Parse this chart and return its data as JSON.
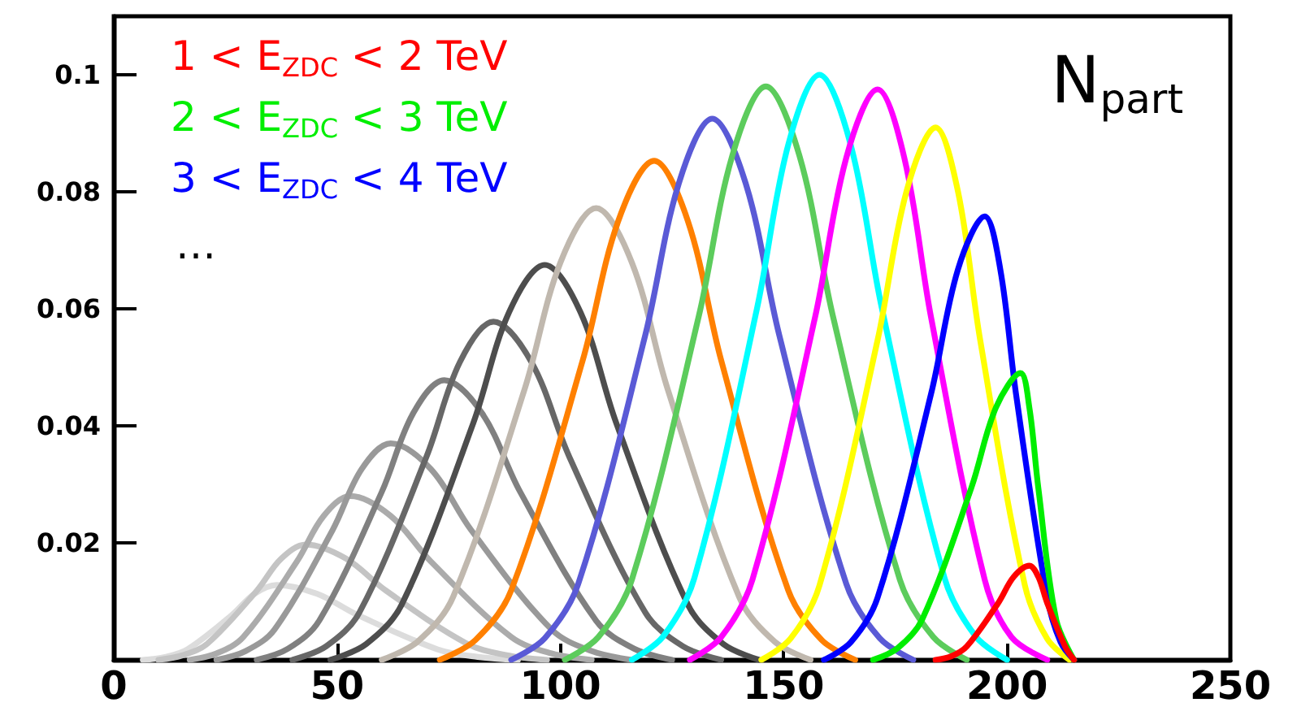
{
  "chart_data": {
    "type": "line",
    "xlim": [
      0,
      250
    ],
    "xticks": [
      0,
      50,
      100,
      150,
      200,
      250
    ],
    "ylim": [
      0,
      0.11
    ],
    "yticks": [
      {
        "value": 0,
        "label": null
      },
      0.02,
      0.04,
      0.06,
      0.08,
      0.1
    ],
    "grid": false,
    "legend": "top left",
    "marker": "none",
    "annotations": [
      "…",
      "N$_{part}$"
    ],
    "series": [
      {
        "name": "1 < E$_{ZDC}$ < 2 TeV",
        "color": "#ff0000",
        "x": [
          184,
          187.5,
          191,
          198,
          201.5,
          205,
          207,
          209,
          213,
          215
        ],
        "values": [
          0,
          0.0006,
          0.0023,
          0.0097,
          0.0142,
          0.0161,
          0.0142,
          0.0097,
          0.0023,
          0
        ]
      },
      {
        "name": "2 < E$_{ZDC}$ < 3 TeV",
        "color": "#00ee00",
        "x": [
          170,
          175.5,
          181,
          192,
          197.5,
          203,
          205,
          207,
          211,
          215
        ],
        "values": [
          0,
          0.002,
          0.0069,
          0.0294,
          0.0431,
          0.049,
          0.0431,
          0.0294,
          0.0069,
          0
        ]
      },
      {
        "name": "3 < E$_{ZDC}$ < 4 TeV",
        "color": "#0000ff",
        "x": [
          159,
          165,
          171,
          183,
          189,
          195,
          198.5,
          202,
          209,
          212,
          215
        ],
        "values": [
          0,
          0.003,
          0.0106,
          0.0455,
          0.0667,
          0.0758,
          0.0667,
          0.0455,
          0.0106,
          0.003,
          0
        ]
      },
      {
        "color": "#ffff00",
        "x": [
          145,
          151.5,
          158,
          171,
          177.5,
          184,
          189,
          194,
          204,
          209,
          214
        ],
        "values": [
          0,
          0.0036,
          0.0127,
          0.0546,
          0.0801,
          0.091,
          0.0801,
          0.0546,
          0.0127,
          0.0036,
          0
        ]
      },
      {
        "color": "#ff00ff",
        "x": [
          129,
          136,
          143,
          157,
          164,
          171,
          177,
          183,
          195,
          201,
          209
        ],
        "values": [
          0,
          0.0039,
          0.0137,
          0.0585,
          0.0858,
          0.0975,
          0.0858,
          0.0585,
          0.0137,
          0.0039,
          0
        ]
      },
      {
        "color": "#00ffff",
        "x": [
          116,
          123,
          130,
          144,
          151,
          158,
          165,
          172,
          186,
          193,
          200
        ],
        "values": [
          0,
          0.004,
          0.014,
          0.06,
          0.088,
          0.1,
          0.088,
          0.06,
          0.014,
          0.004,
          0
        ]
      },
      {
        "color": "#5ccc5c",
        "x": [
          101,
          108.5,
          116,
          131,
          138.5,
          146,
          153.5,
          161,
          176,
          183.5,
          191
        ],
        "values": [
          0,
          0.0039,
          0.0137,
          0.0588,
          0.0862,
          0.098,
          0.0862,
          0.0588,
          0.0137,
          0.0039,
          0
        ]
      },
      {
        "color": "#5a5ad6",
        "x": [
          89,
          96.5,
          104,
          119,
          126.5,
          134,
          141.5,
          149,
          164,
          171.5,
          179
        ],
        "values": [
          0,
          0.0037,
          0.013,
          0.0555,
          0.0814,
          0.0925,
          0.0814,
          0.0555,
          0.013,
          0.0037,
          0
        ]
      },
      {
        "color": "#ff8000",
        "x": [
          73,
          81,
          89,
          105,
          113,
          121,
          128.5,
          136,
          151,
          158.5,
          166
        ],
        "values": [
          0,
          0.0034,
          0.0119,
          0.0512,
          0.0751,
          0.0853,
          0.0751,
          0.0512,
          0.0119,
          0.0034,
          0
        ]
      },
      {
        "color": "#c0b8ae",
        "x": [
          60,
          68,
          76,
          92,
          100,
          108,
          116,
          124,
          140,
          148,
          156
        ],
        "values": [
          0,
          0.0031,
          0.0108,
          0.0463,
          0.0679,
          0.0772,
          0.0679,
          0.0463,
          0.0108,
          0.0031,
          0
        ]
      },
      {
        "color": "#4d4d4d",
        "x": [
          48.5,
          56.5,
          64.5,
          80.5,
          88.5,
          96.5,
          104.5,
          112.5,
          128.5,
          136.5,
          144.5
        ],
        "values": [
          0,
          0.0027,
          0.0095,
          0.0405,
          0.0594,
          0.0675,
          0.0594,
          0.0405,
          0.0095,
          0.0027,
          0
        ]
      },
      {
        "color": "#676767",
        "x": [
          40,
          47.5,
          55,
          70,
          77.5,
          85,
          93.5,
          102,
          119,
          127.5,
          136
        ],
        "values": [
          0,
          0.0023,
          0.0081,
          0.0347,
          0.0509,
          0.0578,
          0.0509,
          0.0347,
          0.0081,
          0.0023,
          0
        ]
      },
      {
        "color": "#808080",
        "x": [
          32,
          39,
          46,
          60,
          67,
          74,
          82.5,
          91,
          108,
          116.5,
          125
        ],
        "values": [
          0,
          0.0019,
          0.0067,
          0.0287,
          0.0421,
          0.0478,
          0.0421,
          0.0287,
          0.0067,
          0.0019,
          0
        ]
      },
      {
        "color": "#999999",
        "x": [
          23,
          29.5,
          36,
          49,
          55.5,
          62,
          71,
          80,
          98,
          107,
          116
        ],
        "values": [
          0,
          0.0015,
          0.0052,
          0.0222,
          0.0326,
          0.037,
          0.0326,
          0.0222,
          0.0052,
          0.0015,
          0
        ]
      },
      {
        "color": "#ababab",
        "x": [
          17,
          23,
          29,
          41,
          47,
          53,
          62,
          71,
          89,
          98,
          107
        ],
        "values": [
          0,
          0.0011,
          0.0039,
          0.0168,
          0.0246,
          0.028,
          0.0246,
          0.0168,
          0.0039,
          0.0011,
          0
        ]
      },
      {
        "color": "#c4c4c4",
        "x": [
          10,
          15.5,
          21,
          32,
          37.5,
          43,
          52,
          61,
          79,
          88,
          97
        ],
        "values": [
          0,
          0.0008,
          0.0028,
          0.0118,
          0.0173,
          0.0197,
          0.0173,
          0.0118,
          0.0028,
          0.0008,
          0
        ]
      },
      {
        "color": "#dcdcdc",
        "x": [
          6.5,
          11.5,
          16.5,
          26.5,
          31.5,
          36.5,
          45.5,
          54.5,
          72.5,
          81.5,
          90.5
        ],
        "values": [
          0,
          0.0005,
          0.0018,
          0.0077,
          0.0113,
          0.0128,
          0.0113,
          0.0077,
          0.0018,
          0.0005,
          0
        ]
      }
    ]
  }
}
